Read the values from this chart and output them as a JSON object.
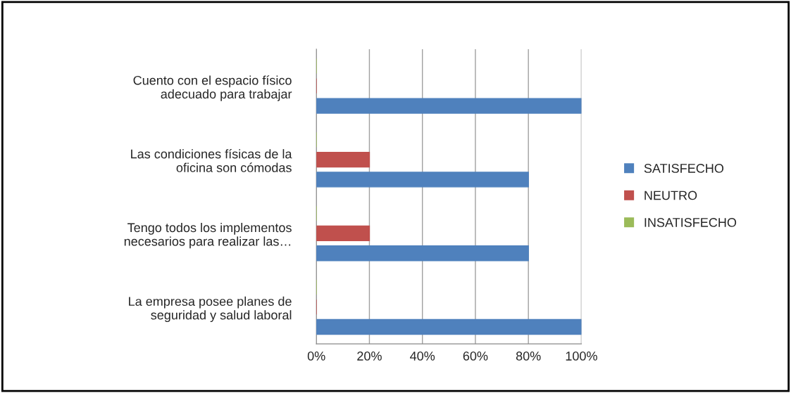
{
  "chart_data": {
    "type": "bar",
    "orientation": "horizontal",
    "categories": [
      "Cuento con el espacio físico adecuado para trabajar",
      "Las condiciones físicas de la oficina son cómodas",
      "Tengo todos los implementos necesarios para realizar las…",
      "La empresa posee planes de seguridad y salud laboral"
    ],
    "series": [
      {
        "name": "INSATISFECHO",
        "color": "#9bbb59",
        "values": [
          0,
          0,
          0,
          0
        ]
      },
      {
        "name": "NEUTRO",
        "color": "#c0504d",
        "values": [
          0,
          20,
          20,
          0
        ]
      },
      {
        "name": "SATISFECHO",
        "color": "#4f81bd",
        "values": [
          100,
          80,
          80,
          100
        ]
      }
    ],
    "xlim": [
      0,
      100
    ],
    "xticks": [
      {
        "value": 0,
        "label": "0%"
      },
      {
        "value": 20,
        "label": "20%"
      },
      {
        "value": 40,
        "label": "40%"
      },
      {
        "value": 60,
        "label": "60%"
      },
      {
        "value": 80,
        "label": "80%"
      },
      {
        "value": 100,
        "label": "100%"
      }
    ],
    "grid": "x",
    "legend": "right"
  }
}
